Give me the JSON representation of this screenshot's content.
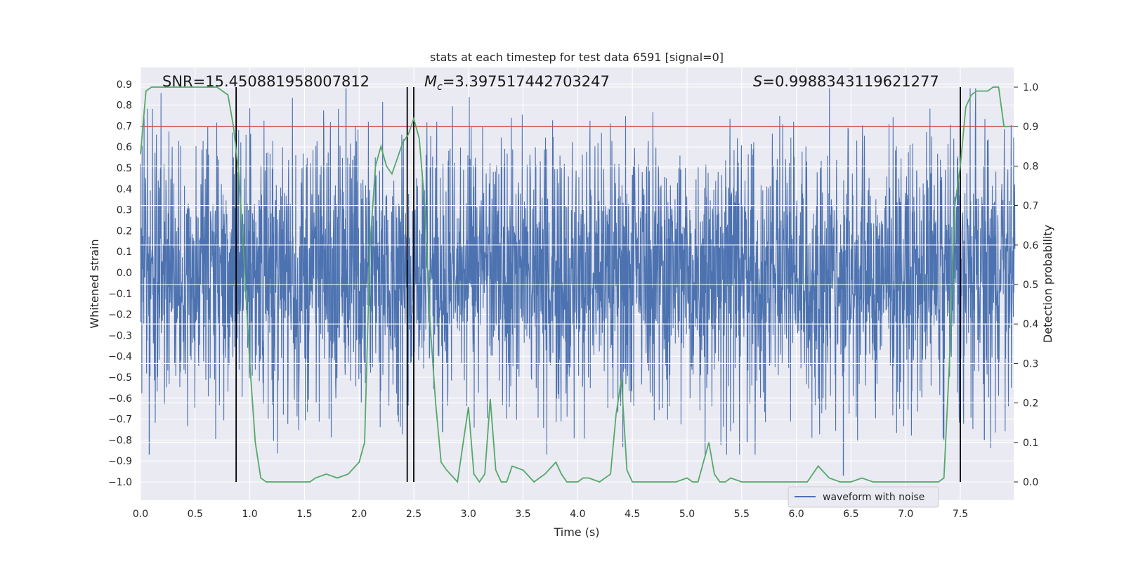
{
  "chart_data": {
    "type": "line",
    "title": "stats at each timestep for test data 6591 [signal=0]",
    "xlabel": "Time (s)",
    "ylabel_left": "Whitened strain",
    "ylabel_right": "Detection probability",
    "xlim": [
      0.0,
      8.0
    ],
    "ylim_left": [
      -1.09,
      0.95
    ],
    "ylim_right": [
      -0.05,
      1.05
    ],
    "x_ticks": [
      "0.0",
      "0.5",
      "1.0",
      "1.5",
      "2.0",
      "2.5",
      "3.0",
      "3.5",
      "4.0",
      "4.5",
      "5.0",
      "5.5",
      "6.0",
      "6.5",
      "7.0",
      "7.5"
    ],
    "y_left_ticks": [
      "0.9",
      "0.8",
      "0.7",
      "0.6",
      "0.5",
      "0.4",
      "0.3",
      "0.2",
      "0.1",
      "0.0",
      "−0.1",
      "−0.2",
      "−0.3",
      "−0.4",
      "−0.5",
      "−0.6",
      "−0.7",
      "−0.8",
      "−0.9",
      "−1.0"
    ],
    "y_right_ticks": [
      "1.0",
      "0.9",
      "0.8",
      "0.7",
      "0.6",
      "0.5",
      "0.4",
      "0.3",
      "0.2",
      "0.1",
      "0.0"
    ],
    "grid": true,
    "legend_position": "lower-right",
    "annotations": {
      "snr": "SNR=15.450881958007812",
      "mc_symbol": "M",
      "mc_sub": "c",
      "mc_value": "=3.397517442703247",
      "s_symbol": "S",
      "s_value": "=0.9988343119621277"
    },
    "threshold": {
      "y_prob": 0.9,
      "color": "#c44e52"
    },
    "vertical_lines_x": [
      0.875,
      2.44,
      2.5,
      7.5
    ],
    "series": [
      {
        "name": "waveform with noise",
        "color": "#4c72b0",
        "kind": "noise",
        "approx_envelope": {
          "typical_low": -0.45,
          "typical_high": 0.45,
          "max": 0.88,
          "min": -0.87
        }
      },
      {
        "name": "",
        "color": "#55a868",
        "axis": "right",
        "x": [
          0.0,
          0.05,
          0.1,
          0.2,
          0.3,
          0.4,
          0.5,
          0.6,
          0.7,
          0.75,
          0.8,
          0.85,
          0.9,
          0.95,
          1.0,
          1.05,
          1.1,
          1.15,
          1.2,
          1.3,
          1.4,
          1.5,
          1.55,
          1.6,
          1.7,
          1.8,
          1.9,
          2.0,
          2.05,
          2.1,
          2.15,
          2.2,
          2.25,
          2.3,
          2.35,
          2.4,
          2.45,
          2.5,
          2.55,
          2.6,
          2.65,
          2.7,
          2.75,
          2.8,
          2.9,
          3.0,
          3.05,
          3.1,
          3.15,
          3.2,
          3.25,
          3.3,
          3.35,
          3.4,
          3.5,
          3.6,
          3.65,
          3.7,
          3.8,
          3.85,
          3.9,
          4.0,
          4.05,
          4.1,
          4.2,
          4.3,
          4.35,
          4.4,
          4.45,
          4.5,
          4.6,
          4.7,
          4.8,
          4.9,
          5.0,
          5.05,
          5.1,
          5.15,
          5.2,
          5.25,
          5.3,
          5.35,
          5.4,
          5.5,
          5.6,
          5.7,
          5.8,
          6.0,
          6.1,
          6.2,
          6.3,
          6.4,
          6.45,
          6.5,
          6.6,
          6.7,
          6.8,
          7.0,
          7.1,
          7.2,
          7.3,
          7.35,
          7.4,
          7.45,
          7.5,
          7.55,
          7.6,
          7.65,
          7.7,
          7.75,
          7.8,
          7.85,
          7.9,
          7.95
        ],
        "values": [
          0.83,
          0.99,
          1.0,
          1.0,
          1.0,
          1.0,
          1.0,
          1.0,
          1.0,
          0.99,
          0.98,
          0.9,
          0.78,
          0.55,
          0.3,
          0.1,
          0.01,
          0.0,
          0.0,
          0.0,
          0.0,
          0.0,
          0.0,
          0.01,
          0.02,
          0.01,
          0.02,
          0.05,
          0.1,
          0.6,
          0.8,
          0.85,
          0.8,
          0.78,
          0.82,
          0.86,
          0.88,
          0.92,
          0.87,
          0.7,
          0.4,
          0.2,
          0.05,
          0.03,
          0.0,
          0.19,
          0.02,
          0.0,
          0.02,
          0.21,
          0.03,
          0.0,
          0.0,
          0.04,
          0.03,
          0.0,
          0.01,
          0.02,
          0.05,
          0.02,
          0.0,
          0.0,
          0.01,
          0.01,
          0.0,
          0.02,
          0.17,
          0.26,
          0.03,
          0.0,
          0.0,
          0.0,
          0.0,
          0.0,
          0.01,
          0.0,
          0.0,
          0.05,
          0.1,
          0.02,
          0.0,
          0.0,
          0.01,
          0.0,
          0.0,
          0.0,
          0.0,
          0.0,
          0.0,
          0.04,
          0.01,
          0.0,
          0.0,
          0.0,
          0.01,
          0.0,
          0.0,
          0.0,
          0.0,
          0.0,
          0.0,
          0.01,
          0.3,
          0.7,
          0.8,
          0.95,
          0.98,
          0.99,
          0.99,
          0.99,
          1.0,
          1.0,
          0.9,
          0.9
        ]
      }
    ]
  }
}
